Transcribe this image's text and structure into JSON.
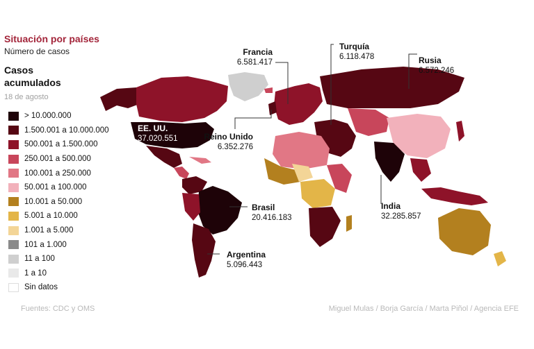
{
  "header": {
    "title": "Situación por países",
    "subtitle": "Número de casos"
  },
  "legend": {
    "title": "Casos acumulados",
    "date": "18 de agosto",
    "items": [
      {
        "label": "> 10.000.000",
        "color": "#1e0308"
      },
      {
        "label": "1.500.001 a 10.000.000",
        "color": "#560713"
      },
      {
        "label": "500.001 a 1.500.000",
        "color": "#8e1329"
      },
      {
        "label": "250.001 a 500.000",
        "color": "#c8465b"
      },
      {
        "label": "100.001 a 250.000",
        "color": "#e17785"
      },
      {
        "label": "50.001 a 100.000",
        "color": "#f2b1bb"
      },
      {
        "label": "10.001 a 50.000",
        "color": "#b3801f"
      },
      {
        "label": "5.001 a 10.000",
        "color": "#e3b548"
      },
      {
        "label": "1.001 a 5.000",
        "color": "#f3d597"
      },
      {
        "label": "101 a 1.000",
        "color": "#8a8a8a"
      },
      {
        "label": "11 a 100",
        "color": "#cfcfcf"
      },
      {
        "label": "1 a 10",
        "color": "#e9e9e9"
      },
      {
        "label": "Sin datos",
        "color": "#ffffff"
      }
    ]
  },
  "callouts": {
    "usa": {
      "name": "EE. UU.",
      "value": "37.020.551"
    },
    "francia": {
      "name": "Francia",
      "value": "6.581.417"
    },
    "turquia": {
      "name": "Turquía",
      "value": "6.118.478"
    },
    "rusia": {
      "name": "Rusia",
      "value": "6.572.246"
    },
    "reino_unido": {
      "name": "Reino Unido",
      "value": "6.352.276"
    },
    "brasil": {
      "name": "Brasil",
      "value": "20.416.183"
    },
    "india": {
      "name": "India",
      "value": "32.285.857"
    },
    "argentina": {
      "name": "Argentina",
      "value": "5.096.443"
    }
  },
  "footer": {
    "sources": "Fuentes: CDC y OMS",
    "credits": "Miguel Mulas / Borja García / Marta Piñol / Agencia EFE"
  }
}
